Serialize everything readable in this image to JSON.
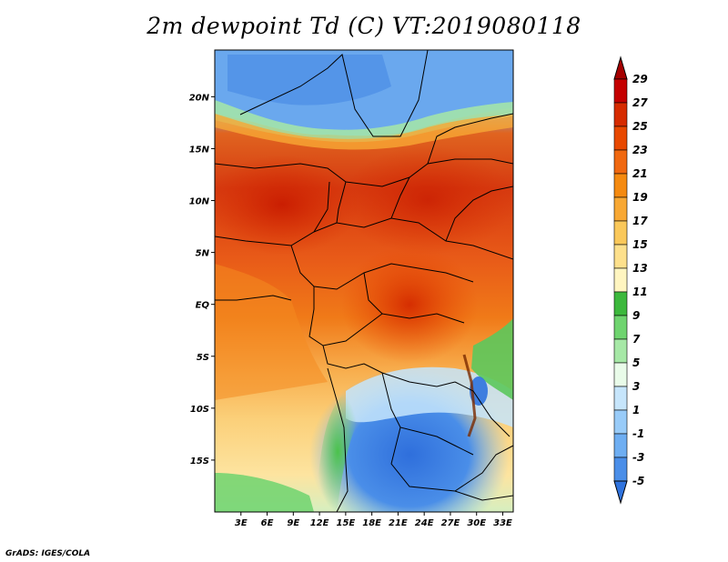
{
  "title": "2m dewpoint Td (C) VT:2019080118",
  "credit": "GrADS: IGES/COLA",
  "map": {
    "lat_labels": [
      "20N",
      "15N",
      "10N",
      "5N",
      "EQ",
      "5S",
      "10S",
      "15S"
    ],
    "lat_values": [
      20,
      15,
      10,
      5,
      0,
      -5,
      -10,
      -15
    ],
    "lon_labels": [
      "3E",
      "6E",
      "9E",
      "12E",
      "15E",
      "18E",
      "21E",
      "24E",
      "27E",
      "30E",
      "33E"
    ],
    "lon_values": [
      3,
      6,
      9,
      12,
      15,
      18,
      21,
      24,
      27,
      30,
      33
    ],
    "lat_range": [
      -20,
      24.5
    ],
    "lon_range": [
      0,
      34.2
    ]
  },
  "colorbar": {
    "labels": [
      "29",
      "27",
      "25",
      "23",
      "21",
      "19",
      "17",
      "15",
      "13",
      "11",
      "9",
      "7",
      "5",
      "3",
      "1",
      "-1",
      "-3",
      "-5"
    ],
    "colors": [
      "#a50000",
      "#c40000",
      "#d62b00",
      "#e84800",
      "#f06810",
      "#f58a10",
      "#f8a834",
      "#fac85a",
      "#fde08c",
      "#fff5c0",
      "#3cb83c",
      "#6fd46f",
      "#a6e8a6",
      "#e9fbe9",
      "#c6e5fb",
      "#98cbf8",
      "#6eaef2",
      "#4a8ee8",
      "#2f73de"
    ]
  }
}
